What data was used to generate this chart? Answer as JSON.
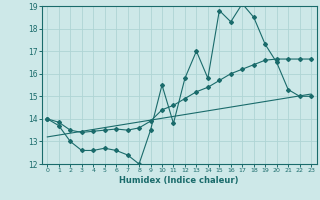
{
  "title": "",
  "xlabel": "Humidex (Indice chaleur)",
  "x_min": 0,
  "x_max": 23,
  "y_min": 12,
  "y_max": 19,
  "bg_color": "#cde8e8",
  "grid_color": "#afd4d4",
  "line_color": "#1a6b6b",
  "series1_x": [
    0,
    1,
    2,
    3,
    4,
    5,
    6,
    7,
    8,
    9,
    10,
    11,
    12,
    13,
    14,
    15,
    16,
    17,
    18,
    19,
    20,
    21,
    22,
    23
  ],
  "series1_y": [
    14.0,
    13.7,
    13.0,
    12.6,
    12.6,
    12.7,
    12.6,
    12.4,
    12.0,
    13.5,
    15.5,
    13.8,
    15.8,
    17.0,
    15.8,
    18.8,
    18.3,
    19.1,
    18.5,
    17.3,
    16.5,
    15.3,
    15.0,
    15.0
  ],
  "series2_x": [
    0,
    1,
    2,
    3,
    4,
    5,
    6,
    7,
    8,
    9,
    10,
    11,
    12,
    13,
    14,
    15,
    16,
    17,
    18,
    19,
    20,
    21,
    22,
    23
  ],
  "series2_y": [
    14.0,
    13.85,
    13.5,
    13.4,
    13.45,
    13.5,
    13.55,
    13.5,
    13.6,
    13.9,
    14.4,
    14.6,
    14.9,
    15.2,
    15.4,
    15.7,
    16.0,
    16.2,
    16.4,
    16.6,
    16.65,
    16.65,
    16.65,
    16.65
  ],
  "series3_x": [
    0,
    23
  ],
  "series3_y": [
    13.2,
    15.1
  ]
}
